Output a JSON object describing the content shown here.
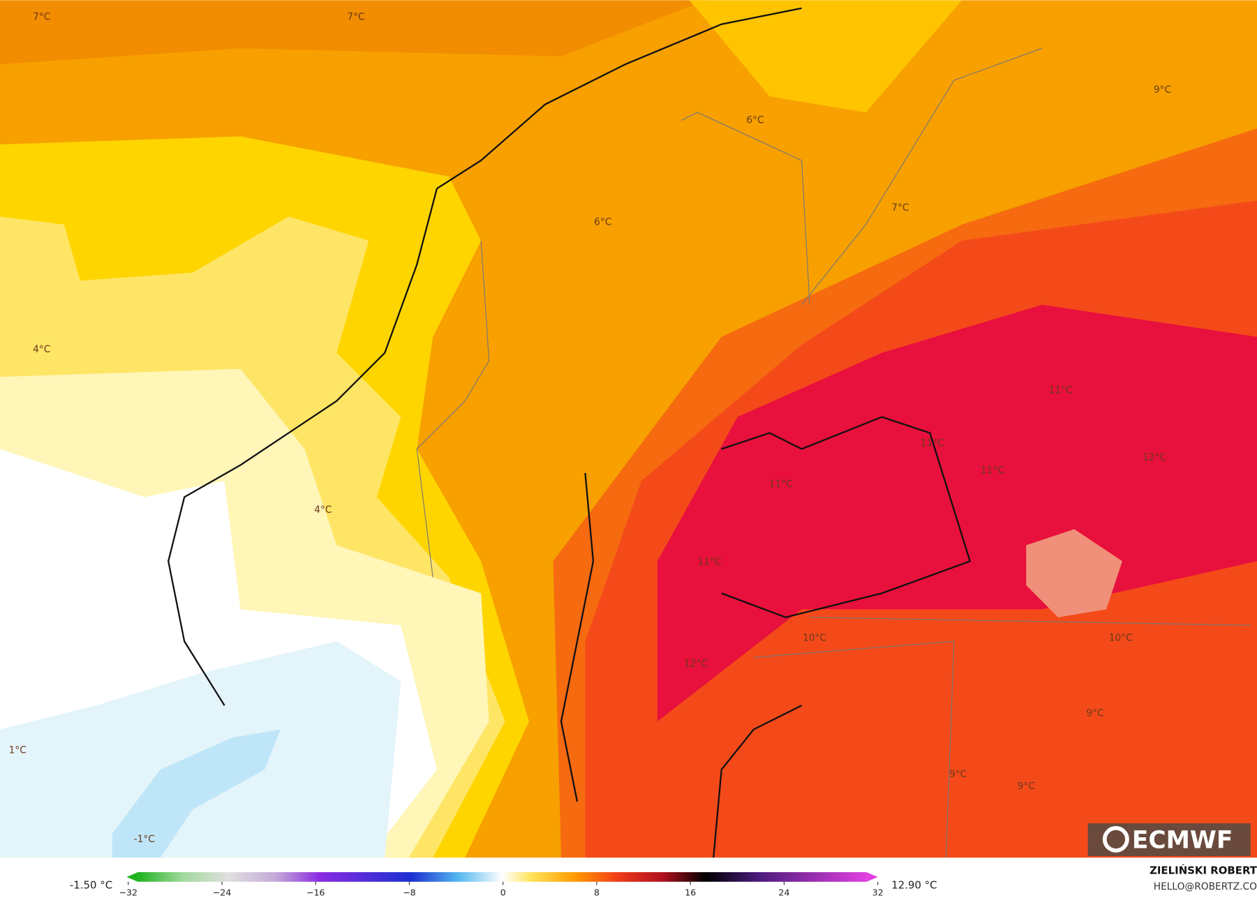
{
  "map": {
    "labels": [
      "7°C",
      "7°C",
      "9°C",
      "6°C",
      "6°C",
      "7°C",
      "4°C",
      "11°C",
      "11°C",
      "11°C",
      "12°C",
      "11°C",
      "4°C",
      "11°C",
      "10°C",
      "10°C",
      "12°C",
      "9°C",
      "1°C",
      "9°C",
      "9°C",
      "-1°C"
    ]
  },
  "colorbar": {
    "ticks": [
      {
        "value": -32,
        "label": "−32"
      },
      {
        "value": -24,
        "label": "−24"
      },
      {
        "value": -16,
        "label": "−16"
      },
      {
        "value": -8,
        "label": "−8"
      },
      0,
      8,
      16,
      24,
      32
    ],
    "min_label": "-1.50 °C",
    "max_label": "12.90 °C"
  },
  "logo": "ECMWF",
  "credit": {
    "name": "ZIELIŃSKI ROBERT",
    "contact": "HELLO@ROBERTZ.CO"
  }
}
